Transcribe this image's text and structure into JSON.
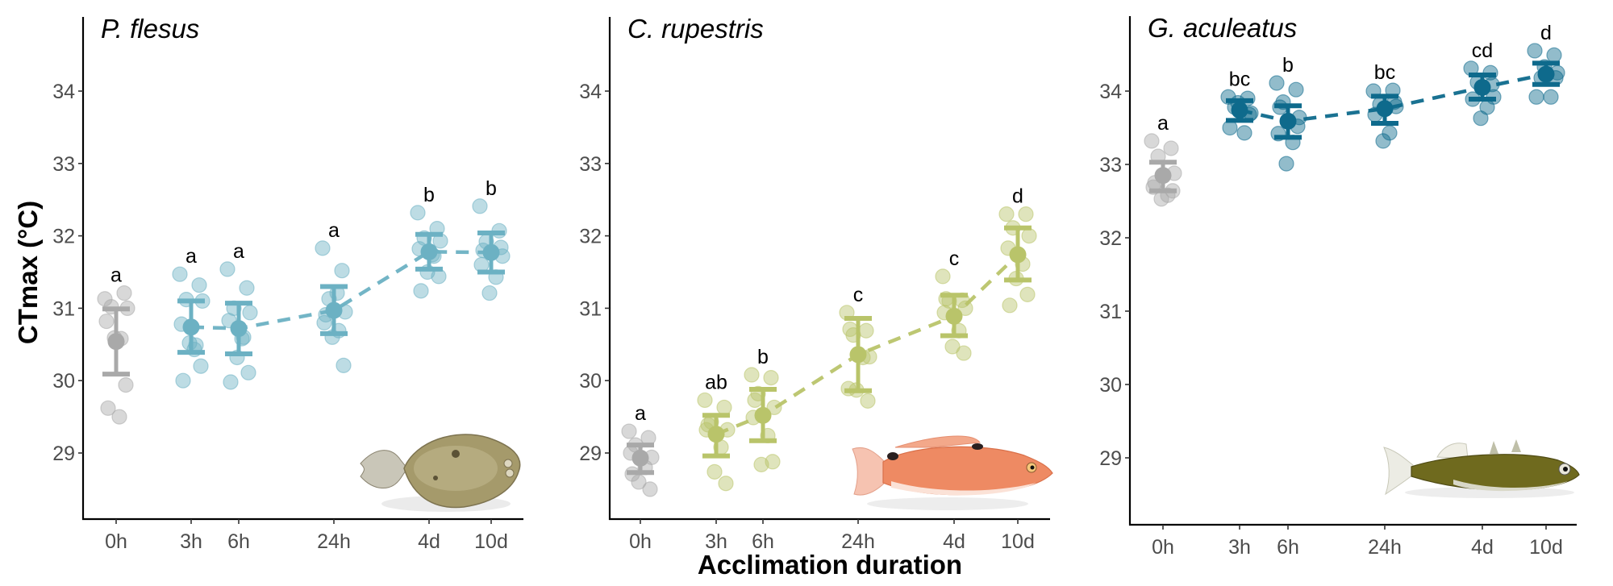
{
  "chart_data": {
    "type": "scatter",
    "ylabel": "CTmax (°C)",
    "xlabel": "Acclimation duration",
    "categories": [
      "0h",
      "3h",
      "6h",
      "24h",
      "4d",
      "10d"
    ],
    "yticks": [
      29,
      30,
      31,
      32,
      33,
      34
    ],
    "ylim": [
      28.1,
      34.95
    ],
    "grid": false,
    "legend": "none",
    "colors": {
      "control": "#a9a9a9",
      "P. flesus": "#6cb1c3",
      "C. rupestris": "#b9c46a",
      "G. aculeatus": "#0e6a8c"
    },
    "panels": [
      {
        "title": "P. flesus",
        "color_key": "P. flesus",
        "fish": "flounder",
        "groups": [
          {
            "category": "0h",
            "letter": "a",
            "mean": 30.54,
            "err_low": 30.09,
            "err_high": 30.99,
            "control": true,
            "points": [
              31.13,
              31.21,
              31.02,
              31.0,
              30.82,
              30.58,
              30.59,
              29.94,
              29.62,
              29.5
            ]
          },
          {
            "category": "3h",
            "letter": "a",
            "mean": 30.74,
            "err_low": 30.39,
            "err_high": 31.1,
            "points": [
              31.47,
              31.32,
              31.12,
              31.1,
              30.78,
              30.49,
              30.52,
              30.2,
              30.0,
              30.43
            ]
          },
          {
            "category": "6h",
            "letter": "a",
            "mean": 30.72,
            "err_low": 30.37,
            "err_high": 31.07,
            "points": [
              31.54,
              31.28,
              31.0,
              30.94,
              30.83,
              30.6,
              30.32,
              30.11,
              29.98,
              30.58
            ]
          },
          {
            "category": "24h",
            "letter": "a",
            "mean": 30.97,
            "err_low": 30.65,
            "err_high": 31.3,
            "points": [
              31.83,
              31.52,
              31.13,
              30.95,
              30.8,
              30.69,
              30.6,
              30.21,
              30.91,
              31.21
            ]
          },
          {
            "category": "4d",
            "letter": "b",
            "mean": 31.78,
            "err_low": 31.54,
            "err_high": 32.02,
            "points": [
              32.32,
              32.1,
              31.97,
              31.93,
              31.82,
              31.72,
              31.5,
              31.44,
              31.24,
              31.74
            ]
          },
          {
            "category": "10d",
            "letter": "b",
            "mean": 31.77,
            "err_low": 31.5,
            "err_high": 32.04,
            "points": [
              32.41,
              32.07,
              31.92,
              31.72,
              31.6,
              31.43,
              31.21,
              31.84,
              31.8
            ]
          }
        ]
      },
      {
        "title": "C. rupestris",
        "color_key": "C. rupestris",
        "fish": "wrasse",
        "groups": [
          {
            "category": "0h",
            "letter": "a",
            "mean": 28.93,
            "err_low": 28.73,
            "err_high": 29.11,
            "control": true,
            "points": [
              29.3,
              29.21,
              29.11,
              28.94,
              29.0,
              28.8,
              28.6,
              28.5,
              28.71
            ]
          },
          {
            "category": "3h",
            "letter": "ab",
            "mean": 29.26,
            "err_low": 28.96,
            "err_high": 29.52,
            "points": [
              29.73,
              29.63,
              29.43,
              29.32,
              29.32,
              29.08,
              28.74,
              28.58,
              29.39
            ]
          },
          {
            "category": "6h",
            "letter": "b",
            "mean": 29.52,
            "err_low": 29.17,
            "err_high": 29.88,
            "points": [
              30.08,
              30.04,
              29.82,
              29.63,
              29.49,
              29.24,
              28.84,
              28.88,
              29.73
            ]
          },
          {
            "category": "24h",
            "letter": "c",
            "mean": 30.36,
            "err_low": 29.86,
            "err_high": 30.86,
            "points": [
              30.94,
              30.69,
              30.63,
              30.33,
              29.89,
              30.32,
              29.87,
              29.72,
              30.71
            ]
          },
          {
            "category": "4d",
            "letter": "c",
            "mean": 30.89,
            "err_low": 30.62,
            "err_high": 31.18,
            "points": [
              31.44,
              31.11,
              31.1,
              31.0,
              30.94,
              30.69,
              30.47,
              30.38,
              31.13
            ]
          },
          {
            "category": "10d",
            "letter": "d",
            "mean": 31.74,
            "err_low": 31.39,
            "err_high": 32.11,
            "points": [
              32.3,
              32.3,
              32.11,
              32.0,
              31.83,
              31.61,
              31.41,
              31.19,
              31.04
            ]
          }
        ]
      },
      {
        "title": "G. aculeatus",
        "color_key": "G. aculeatus",
        "fish": "stickleback",
        "groups": [
          {
            "category": "0h",
            "letter": "a",
            "mean": 32.85,
            "err_low": 32.64,
            "err_high": 33.03,
            "control": true,
            "points": [
              33.32,
              33.22,
              33.11,
              32.88,
              32.69,
              32.58,
              32.53,
              32.64,
              32.75
            ]
          },
          {
            "category": "3h",
            "letter": "bc",
            "mean": 33.74,
            "err_low": 33.6,
            "err_high": 33.87,
            "points": [
              33.92,
              33.9,
              33.78,
              33.7,
              33.5,
              33.43,
              33.84,
              33.68
            ]
          },
          {
            "category": "6h",
            "letter": "b",
            "mean": 33.59,
            "err_low": 33.37,
            "err_high": 33.8,
            "points": [
              34.11,
              34.02,
              33.85,
              33.64,
              33.42,
              33.3,
              33.01,
              33.52,
              33.78
            ]
          },
          {
            "category": "24h",
            "letter": "bc",
            "mean": 33.76,
            "err_low": 33.56,
            "err_high": 33.93,
            "points": [
              34.0,
              34.01,
              33.82,
              33.79,
              33.68,
              33.43,
              33.32,
              33.85
            ]
          },
          {
            "category": "4d",
            "letter": "cd",
            "mean": 34.05,
            "err_low": 33.89,
            "err_high": 34.22,
            "points": [
              34.31,
              34.25,
              34.12,
              33.92,
              33.89,
              33.78,
              33.63,
              34.09
            ]
          },
          {
            "category": "10d",
            "letter": "d",
            "mean": 34.23,
            "err_low": 34.09,
            "err_high": 34.38,
            "points": [
              34.55,
              34.49,
              34.18,
              34.25,
              33.92,
              33.92,
              34.33,
              34.18
            ]
          }
        ]
      }
    ]
  }
}
